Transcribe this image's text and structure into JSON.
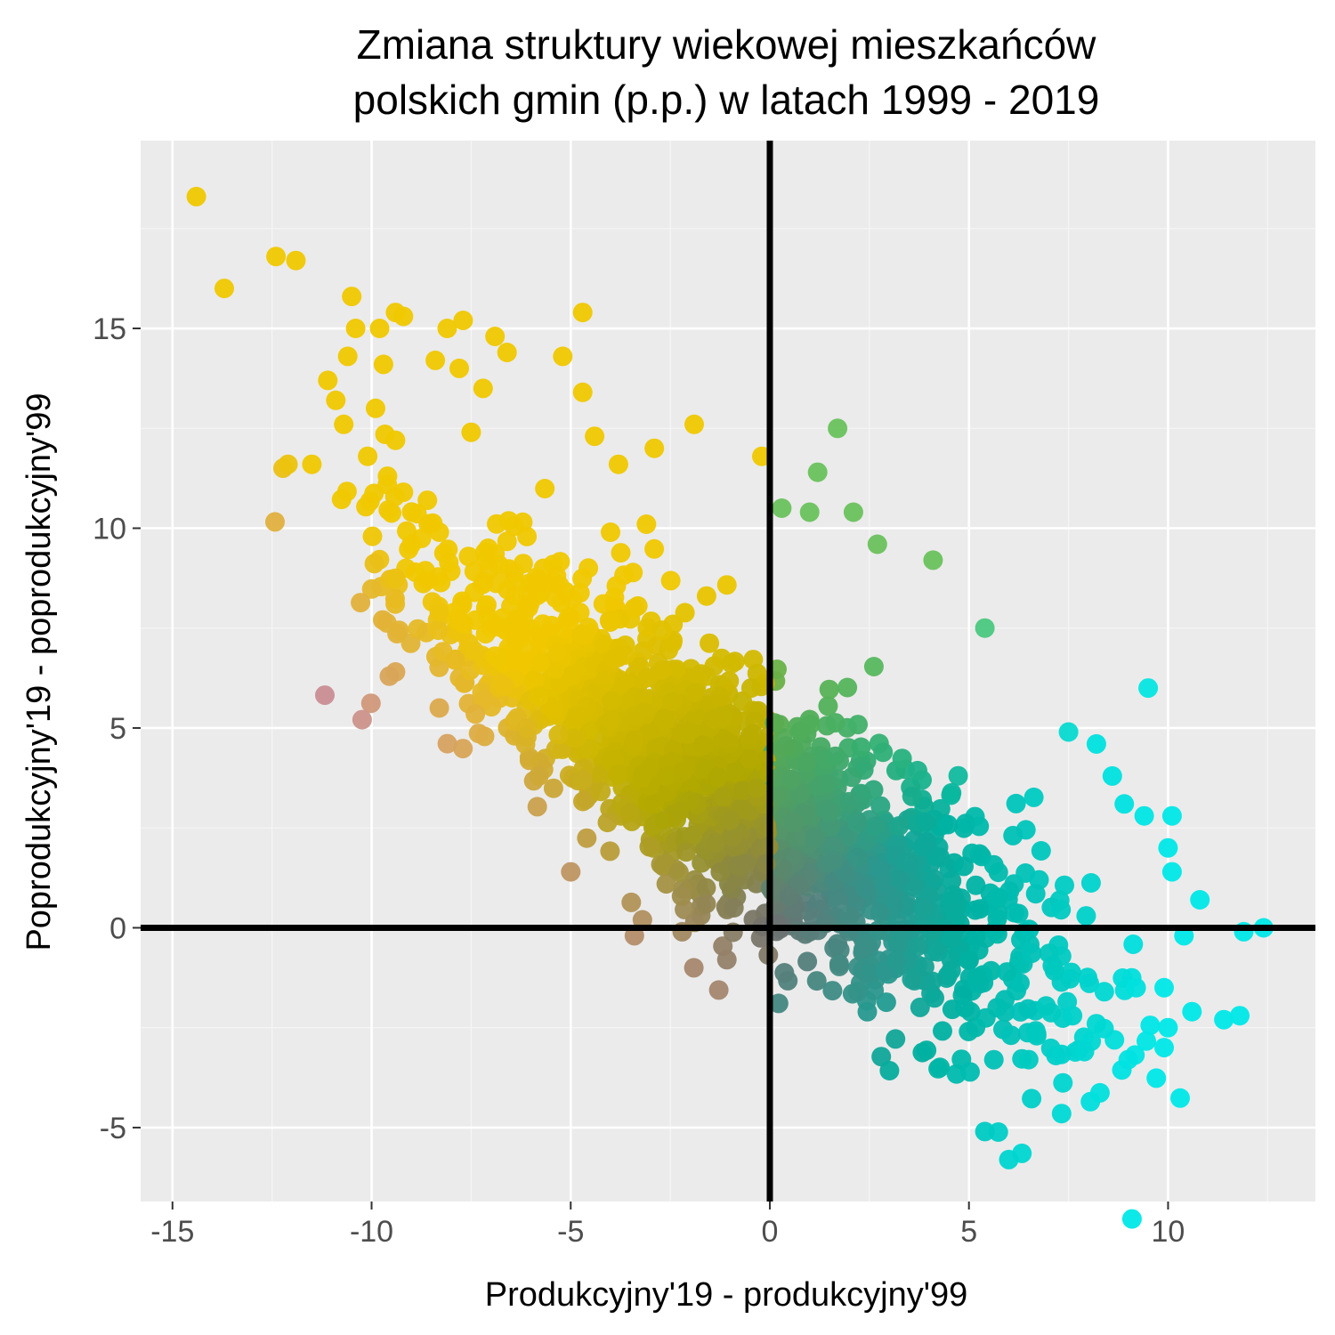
{
  "chart_data": {
    "type": "scatter",
    "title_lines": [
      "Zmiana struktury wiekowej mieszkańców",
      "polskich gmin (p.p.) w latach 1999 - 2019"
    ],
    "xlabel": "Produkcyjny'19 - produkcyjny'99",
    "ylabel": "Poprodukcyjny'19 - poprodukcyjny'99",
    "xlim": [
      -15.8,
      13.7
    ],
    "ylim": [
      -6.85,
      19.7
    ],
    "x_ticks": [
      -15,
      -10,
      -5,
      0,
      5,
      10
    ],
    "x_tick_labels": [
      "-15",
      "-10",
      "-5",
      "0",
      "5",
      "10"
    ],
    "y_ticks": [
      -5,
      0,
      5,
      10,
      15
    ],
    "y_tick_labels": [
      "-5",
      "0",
      "5",
      "10",
      "15"
    ],
    "x_minor_ticks": [
      -12.5,
      -7.5,
      -2.5,
      2.5,
      7.5,
      12.5
    ],
    "y_minor_ticks": [
      -2.5,
      2.5,
      7.5,
      12.5,
      17.5
    ],
    "reference_lines": {
      "x": 0,
      "y": 0
    },
    "grid": true,
    "colors": {
      "panel_background": "#ebebeb",
      "grid_major": "#ffffff",
      "grid_minor": "#f5f5f5",
      "reference_line": "#000000",
      "high_poprodukcyjny": "#f0c800",
      "high_produkcyjny": "#00e8e8",
      "negative_both": "#c080b8",
      "neutral": "#707070"
    },
    "points": [
      {
        "x": -14.4,
        "y": 18.3
      },
      {
        "x": -13.7,
        "y": 16.0
      },
      {
        "x": -12.4,
        "y": 16.8
      },
      {
        "x": -11.9,
        "y": 16.7
      },
      {
        "x": -12.1,
        "y": 11.6
      },
      {
        "x": -11.5,
        "y": 11.6
      },
      {
        "x": -11.1,
        "y": 13.7
      },
      {
        "x": -10.9,
        "y": 13.2
      },
      {
        "x": -10.5,
        "y": 15.8
      },
      {
        "x": -10.4,
        "y": 15.0
      },
      {
        "x": -10.6,
        "y": 14.3
      },
      {
        "x": -10.7,
        "y": 12.6
      },
      {
        "x": -10.1,
        "y": 11.8
      },
      {
        "x": -9.9,
        "y": 13.0
      },
      {
        "x": -9.8,
        "y": 15.0
      },
      {
        "x": -9.7,
        "y": 14.1
      },
      {
        "x": -9.4,
        "y": 15.4
      },
      {
        "x": -9.2,
        "y": 15.3
      },
      {
        "x": -9.4,
        "y": 12.2
      },
      {
        "x": -9.6,
        "y": 11.3
      },
      {
        "x": -9.2,
        "y": 10.9
      },
      {
        "x": -9.0,
        "y": 9.6
      },
      {
        "x": -8.9,
        "y": 8.9
      },
      {
        "x": -8.6,
        "y": 8.7
      },
      {
        "x": -8.3,
        "y": 7.9
      },
      {
        "x": -8.3,
        "y": 5.5
      },
      {
        "x": -7.9,
        "y": 6.7
      },
      {
        "x": -8.3,
        "y": 9.9
      },
      {
        "x": -8.6,
        "y": 10.7
      },
      {
        "x": -8.4,
        "y": 14.2
      },
      {
        "x": -8.1,
        "y": 15.0
      },
      {
        "x": -7.7,
        "y": 15.2
      },
      {
        "x": -7.8,
        "y": 14.0
      },
      {
        "x": -7.5,
        "y": 12.4
      },
      {
        "x": -7.2,
        "y": 13.5
      },
      {
        "x": -6.9,
        "y": 14.8
      },
      {
        "x": -6.6,
        "y": 14.4
      },
      {
        "x": -7.4,
        "y": 7.7
      },
      {
        "x": -7.0,
        "y": 7.5
      },
      {
        "x": -6.9,
        "y": 6.8
      },
      {
        "x": -6.4,
        "y": 6.7
      },
      {
        "x": -6.3,
        "y": 7.2
      },
      {
        "x": -6.1,
        "y": 5.0
      },
      {
        "x": -5.8,
        "y": 5.8
      },
      {
        "x": -5.8,
        "y": 3.8
      },
      {
        "x": -5.0,
        "y": 1.4
      },
      {
        "x": -4.7,
        "y": 3.7
      },
      {
        "x": -4.7,
        "y": 15.4
      },
      {
        "x": -5.2,
        "y": 14.3
      },
      {
        "x": -4.7,
        "y": 13.4
      },
      {
        "x": -4.4,
        "y": 12.3
      },
      {
        "x": -3.8,
        "y": 11.6
      },
      {
        "x": -2.9,
        "y": 12.0
      },
      {
        "x": -1.9,
        "y": 12.6
      },
      {
        "x": -4.0,
        "y": 9.9
      },
      {
        "x": -3.1,
        "y": 10.1
      },
      {
        "x": -3.4,
        "y": 4.7
      },
      {
        "x": -2.9,
        "y": 3.1
      },
      {
        "x": -2.6,
        "y": 3.8
      },
      {
        "x": -2.2,
        "y": 3.9
      },
      {
        "x": -2.1,
        "y": 1.9
      },
      {
        "x": -2.6,
        "y": 1.1
      },
      {
        "x": -3.2,
        "y": 0.2
      },
      {
        "x": -3.4,
        "y": -0.2
      },
      {
        "x": -2.2,
        "y": -0.1
      },
      {
        "x": -1.6,
        "y": 1.0
      },
      {
        "x": -1.6,
        "y": 0.6
      },
      {
        "x": -0.9,
        "y": 0.5
      },
      {
        "x": -0.6,
        "y": 1.6
      },
      {
        "x": -0.1,
        "y": 1.6
      },
      {
        "x": 0.2,
        "y": 0.1
      },
      {
        "x": 0.1,
        "y": 0.05
      },
      {
        "x": 1.0,
        "y": -0.1
      },
      {
        "x": 1.7,
        "y": -0.4
      },
      {
        "x": 2.0,
        "y": 0.3
      },
      {
        "x": -0.2,
        "y": 11.8
      },
      {
        "x": 0.3,
        "y": 10.5
      },
      {
        "x": 1.0,
        "y": 10.4
      },
      {
        "x": 1.2,
        "y": 11.4
      },
      {
        "x": 1.7,
        "y": 12.5
      },
      {
        "x": 2.1,
        "y": 10.4
      },
      {
        "x": 2.7,
        "y": 9.6
      },
      {
        "x": 4.1,
        "y": 9.2
      },
      {
        "x": 5.4,
        "y": 7.5
      },
      {
        "x": 9.5,
        "y": 6.0
      },
      {
        "x": 7.5,
        "y": 4.9
      },
      {
        "x": 8.2,
        "y": 4.6
      },
      {
        "x": 8.6,
        "y": 3.8
      },
      {
        "x": 8.9,
        "y": 3.1
      },
      {
        "x": 9.4,
        "y": 2.8
      },
      {
        "x": 10.1,
        "y": 2.8
      },
      {
        "x": 10.0,
        "y": 2.0
      },
      {
        "x": 10.1,
        "y": 1.4
      },
      {
        "x": 10.8,
        "y": 0.7
      },
      {
        "x": 10.4,
        "y": -0.2
      },
      {
        "x": 11.9,
        "y": -0.1
      },
      {
        "x": 12.4,
        "y": 0.0
      },
      {
        "x": 11.4,
        "y": -2.3
      },
      {
        "x": 11.8,
        "y": -2.2
      },
      {
        "x": 10.6,
        "y": -2.1
      },
      {
        "x": 10.0,
        "y": -2.5
      },
      {
        "x": 9.9,
        "y": -3.0
      },
      {
        "x": 9.0,
        "y": -3.3
      },
      {
        "x": 7.9,
        "y": -3.1
      },
      {
        "x": 6.5,
        "y": -3.3
      },
      {
        "x": 6.7,
        "y": -2.7
      },
      {
        "x": 5.4,
        "y": -5.1
      },
      {
        "x": 6.0,
        "y": -5.8
      },
      {
        "x": 4.9,
        "y": -2.0
      },
      {
        "x": 5.9,
        "y": -1.8
      },
      {
        "x": 7.6,
        "y": -2.2
      },
      {
        "x": 8.2,
        "y": -2.4
      },
      {
        "x": 8.4,
        "y": -1.6
      },
      {
        "x": 9.2,
        "y": -1.5
      },
      {
        "x": 9.9,
        "y": -1.5
      }
    ],
    "cloud": {
      "center_x": [
        -14,
        12
      ],
      "slope": -0.62,
      "intercept": 2.9,
      "spread": 1.55,
      "count": 1850
    }
  }
}
